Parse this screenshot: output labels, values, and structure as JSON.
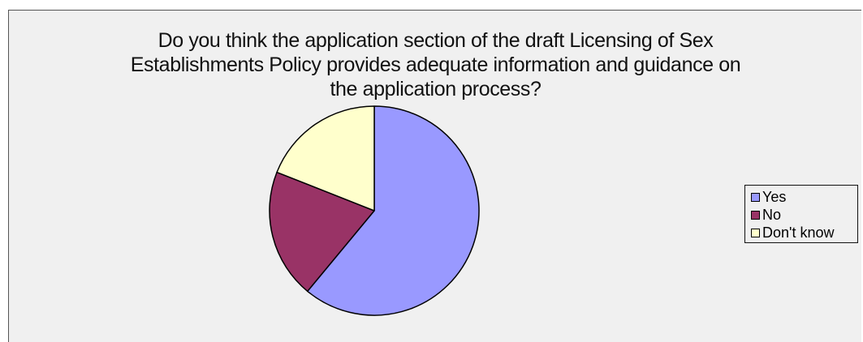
{
  "chart_data": {
    "type": "pie",
    "title_lines": [
      "Do you think the application section of the draft Licensing of Sex",
      "Establishments Policy provides adequate information and guidance on",
      "the application process?"
    ],
    "categories": [
      "Yes",
      "No",
      "Don't know"
    ],
    "values": [
      61,
      20,
      19
    ],
    "colors": [
      "#9999ff",
      "#993366",
      "#ffffcc"
    ],
    "start_angle_deg": 0,
    "direction": "clockwise",
    "legend_position": "right"
  }
}
